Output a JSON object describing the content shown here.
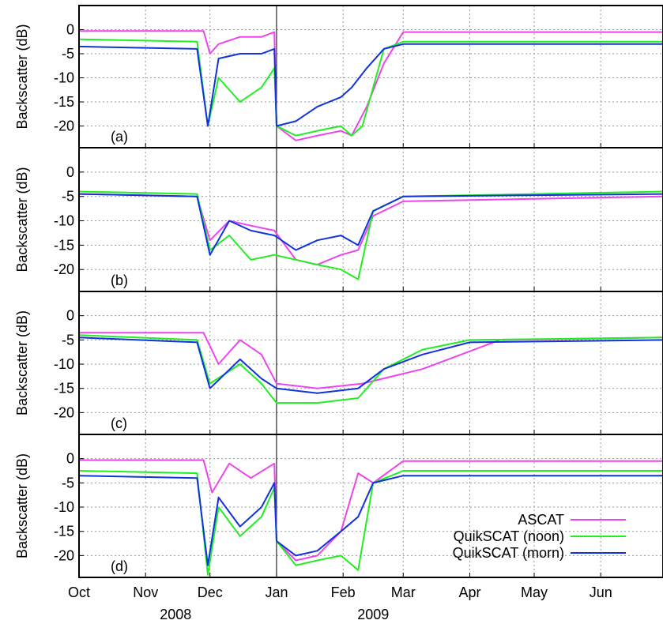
{
  "chart_data": {
    "type": "line",
    "xlabel": "",
    "ylabel": "Backscatter (dB)",
    "x_ticks": [
      "Oct",
      "Nov",
      "Dec",
      "Jan",
      "Feb",
      "Mar",
      "Apr",
      "May",
      "Jun"
    ],
    "year_labels": [
      "2008",
      "2009"
    ],
    "x_tick_dates": [
      "2008-10-01",
      "2008-11-01",
      "2008-12-01",
      "2009-01-01",
      "2009-02-01",
      "2009-03-01",
      "2009-04-01",
      "2009-05-01",
      "2009-06-01"
    ],
    "xlim": [
      "2008-10-01",
      "2009-06-30"
    ],
    "ylim": [
      -24.5,
      5
    ],
    "y_ticks": [
      0,
      -5,
      -10,
      -15,
      -20
    ],
    "grid": true,
    "legend": {
      "position": "bottom-right",
      "entries": [
        "ASCAT",
        "QuikSCAT (noon)",
        "QuikSCAT (morn)"
      ]
    },
    "colors": {
      "ASCAT": "#ee44ee",
      "QuikSCAT (noon)": "#22ee22",
      "QuikSCAT (morn)": "#1133dd"
    },
    "panels": [
      {
        "label": "(a)",
        "series": [
          {
            "name": "ASCAT",
            "x": [
              "2008-10-01",
              "2008-11-28",
              "2008-12-01",
              "2008-12-05",
              "2008-12-15",
              "2008-12-25",
              "2008-12-31",
              "2009-01-01",
              "2009-01-10",
              "2009-01-20",
              "2009-01-31",
              "2009-02-05",
              "2009-02-12",
              "2009-02-20",
              "2009-03-01",
              "2009-06-30"
            ],
            "values": [
              -0.3,
              -0.3,
              -5,
              -3,
              -1.5,
              -1.5,
              -0.5,
              -20,
              -23,
              -22,
              -21,
              -22,
              -16,
              -7,
              -0.5,
              -0.5
            ]
          },
          {
            "name": "QuikSCAT (noon)",
            "x": [
              "2008-10-01",
              "2008-11-25",
              "2008-11-30",
              "2008-12-05",
              "2008-12-15",
              "2008-12-25",
              "2008-12-31",
              "2009-01-01",
              "2009-01-10",
              "2009-01-20",
              "2009-01-31",
              "2009-02-05",
              "2009-02-10",
              "2009-02-20",
              "2009-03-01",
              "2009-06-30"
            ],
            "values": [
              -2,
              -2.5,
              -20,
              -10,
              -15,
              -12,
              -8,
              -20,
              -22,
              -21,
              -20,
              -22,
              -20,
              -4,
              -2.5,
              -2.5
            ]
          },
          {
            "name": "QuikSCAT (morn)",
            "x": [
              "2008-10-01",
              "2008-11-25",
              "2008-11-30",
              "2008-12-05",
              "2008-12-15",
              "2008-12-25",
              "2008-12-31",
              "2009-01-01",
              "2009-01-10",
              "2009-01-20",
              "2009-01-31",
              "2009-02-05",
              "2009-02-12",
              "2009-02-20",
              "2009-03-01",
              "2009-06-30"
            ],
            "values": [
              -3.5,
              -4,
              -20,
              -6,
              -5,
              -5,
              -4,
              -20,
              -19,
              -16,
              -14,
              -12,
              -8,
              -4,
              -3,
              -3
            ]
          }
        ]
      },
      {
        "label": "(b)",
        "series": [
          {
            "name": "ASCAT",
            "x": [
              "2008-10-01",
              "2008-11-25",
              "2008-12-01",
              "2008-12-10",
              "2008-12-20",
              "2008-12-31",
              "2009-01-10",
              "2009-01-20",
              "2009-01-31",
              "2009-02-08",
              "2009-02-15",
              "2009-03-01",
              "2009-06-30"
            ],
            "values": [
              -4.5,
              -5,
              -14,
              -10,
              -11,
              -12,
              -18,
              -19,
              -17,
              -16,
              -9,
              -6,
              -5
            ]
          },
          {
            "name": "QuikSCAT (noon)",
            "x": [
              "2008-10-01",
              "2008-11-25",
              "2008-12-01",
              "2008-12-10",
              "2008-12-20",
              "2008-12-31",
              "2009-01-10",
              "2009-01-20",
              "2009-01-31",
              "2009-02-08",
              "2009-02-15",
              "2009-03-01",
              "2009-06-30"
            ],
            "values": [
              -4,
              -4.5,
              -16,
              -13,
              -18,
              -17,
              -18,
              -19,
              -20,
              -22,
              -8,
              -5,
              -4
            ]
          },
          {
            "name": "QuikSCAT (morn)",
            "x": [
              "2008-10-01",
              "2008-11-25",
              "2008-12-01",
              "2008-12-10",
              "2008-12-20",
              "2008-12-31",
              "2009-01-10",
              "2009-01-20",
              "2009-01-31",
              "2009-02-08",
              "2009-02-15",
              "2009-03-01",
              "2009-06-30"
            ],
            "values": [
              -4.5,
              -5,
              -17,
              -10,
              -12,
              -13,
              -16,
              -14,
              -13,
              -15,
              -8,
              -5,
              -4.5
            ]
          }
        ]
      },
      {
        "label": "(c)",
        "series": [
          {
            "name": "ASCAT",
            "x": [
              "2008-10-01",
              "2008-11-28",
              "2008-12-05",
              "2008-12-15",
              "2008-12-25",
              "2009-01-01",
              "2009-01-20",
              "2009-02-10",
              "2009-03-10",
              "2009-04-15",
              "2009-06-30"
            ],
            "values": [
              -3.5,
              -3.5,
              -10,
              -5,
              -8,
              -14,
              -15,
              -14,
              -11,
              -5,
              -4.5
            ]
          },
          {
            "name": "QuikSCAT (noon)",
            "x": [
              "2008-10-01",
              "2008-11-25",
              "2008-12-01",
              "2008-12-15",
              "2008-12-25",
              "2009-01-01",
              "2009-01-20",
              "2009-02-08",
              "2009-02-20",
              "2009-03-10",
              "2009-04-01",
              "2009-06-30"
            ],
            "values": [
              -4,
              -5,
              -14,
              -10,
              -14,
              -18,
              -18,
              -17,
              -11,
              -7,
              -5,
              -4.5
            ]
          },
          {
            "name": "QuikSCAT (morn)",
            "x": [
              "2008-10-01",
              "2008-11-25",
              "2008-12-01",
              "2008-12-15",
              "2008-12-25",
              "2009-01-01",
              "2009-01-20",
              "2009-02-08",
              "2009-02-20",
              "2009-03-10",
              "2009-04-01",
              "2009-06-30"
            ],
            "values": [
              -4.5,
              -5.5,
              -15,
              -9,
              -13,
              -15,
              -16,
              -15,
              -11,
              -8,
              -5.5,
              -5
            ]
          }
        ]
      },
      {
        "label": "(d)",
        "series": [
          {
            "name": "ASCAT",
            "x": [
              "2008-10-01",
              "2008-11-28",
              "2008-12-02",
              "2008-12-10",
              "2008-12-20",
              "2008-12-31",
              "2009-01-01",
              "2009-01-10",
              "2009-01-20",
              "2009-01-31",
              "2009-02-08",
              "2009-02-15",
              "2009-03-01",
              "2009-06-30"
            ],
            "values": [
              -0.3,
              -0.3,
              -7,
              -1,
              -4,
              -1,
              -17,
              -21,
              -20,
              -15,
              -3,
              -5,
              -0.5,
              -0.5
            ]
          },
          {
            "name": "QuikSCAT (noon)",
            "x": [
              "2008-10-01",
              "2008-11-25",
              "2008-11-30",
              "2008-12-05",
              "2008-12-15",
              "2008-12-25",
              "2008-12-31",
              "2009-01-01",
              "2009-01-10",
              "2009-01-20",
              "2009-01-31",
              "2009-02-08",
              "2009-02-15",
              "2009-03-01",
              "2009-06-30"
            ],
            "values": [
              -2.5,
              -3,
              -24,
              -10,
              -16,
              -12,
              -6,
              -17,
              -22,
              -21,
              -20,
              -23,
              -5,
              -2.5,
              -2.5
            ]
          },
          {
            "name": "QuikSCAT (morn)",
            "x": [
              "2008-10-01",
              "2008-11-25",
              "2008-11-30",
              "2008-12-05",
              "2008-12-15",
              "2008-12-25",
              "2008-12-31",
              "2009-01-01",
              "2009-01-10",
              "2009-01-20",
              "2009-01-31",
              "2009-02-08",
              "2009-02-15",
              "2009-03-01",
              "2009-06-30"
            ],
            "values": [
              -3.5,
              -4,
              -22,
              -8,
              -14,
              -10,
              -5,
              -17,
              -20,
              -19,
              -15,
              -12,
              -5,
              -3.5,
              -3.5
            ]
          }
        ]
      }
    ]
  }
}
